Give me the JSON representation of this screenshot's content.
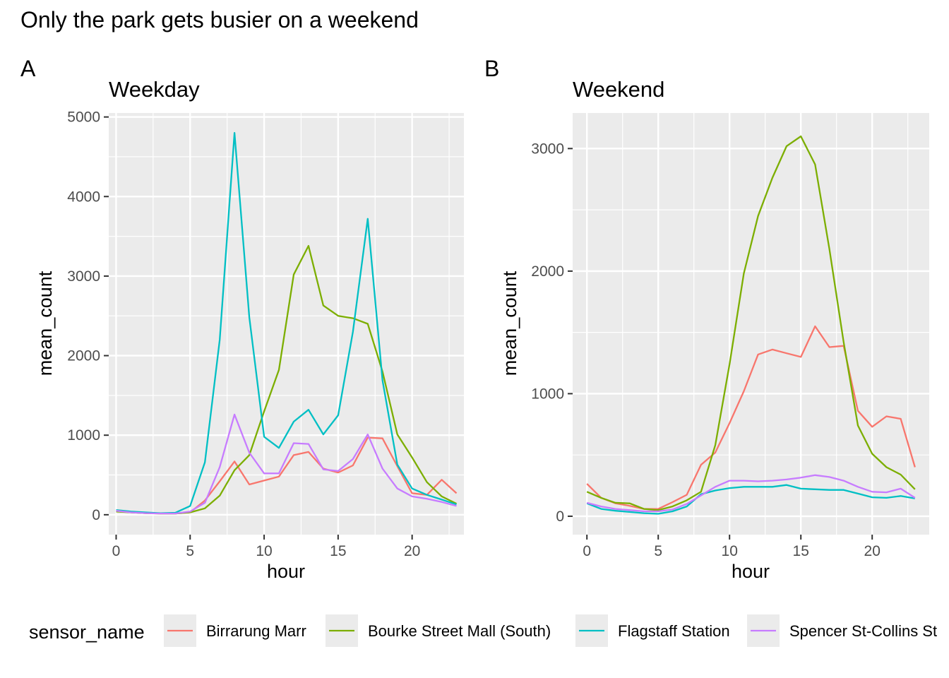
{
  "title": "Only the park gets busier on a weekend",
  "legend": {
    "title": "sensor_name"
  },
  "colors": {
    "Birrarung Marr": "#F8766D",
    "Bourke Street Mall (South)": "#7CAE00",
    "Flagstaff Station": "#00BFC4",
    "Spencer St-Collins St": "#C77CFF"
  },
  "chart_data": [
    {
      "tag": "A",
      "title": "Weekday",
      "type": "line",
      "xlabel": "hour",
      "ylabel": "mean_count",
      "xlim": [
        -0.5,
        23.5
      ],
      "ylim": [
        -250,
        5050
      ],
      "xticks": [
        0,
        5,
        10,
        15,
        20
      ],
      "yticks": [
        0,
        1000,
        2000,
        3000,
        4000,
        5000
      ],
      "grid": true,
      "x": [
        0,
        1,
        2,
        3,
        4,
        5,
        6,
        7,
        8,
        9,
        10,
        11,
        12,
        13,
        14,
        15,
        16,
        17,
        18,
        19,
        20,
        21,
        22,
        23
      ],
      "series": [
        {
          "name": "Birrarung Marr",
          "values": [
            50,
            30,
            20,
            15,
            15,
            30,
            180,
            420,
            670,
            380,
            430,
            480,
            750,
            790,
            580,
            530,
            620,
            970,
            960,
            610,
            270,
            250,
            440,
            270
          ]
        },
        {
          "name": "Bourke Street Mall (South)",
          "values": [
            40,
            30,
            20,
            15,
            15,
            30,
            80,
            240,
            560,
            750,
            1300,
            1820,
            3020,
            3380,
            2630,
            2500,
            2470,
            2400,
            1800,
            1010,
            720,
            410,
            230,
            140
          ]
        },
        {
          "name": "Flagstaff Station",
          "values": [
            60,
            40,
            30,
            20,
            25,
            110,
            660,
            2200,
            4800,
            2480,
            980,
            840,
            1170,
            1320,
            1010,
            1250,
            2300,
            3720,
            1690,
            630,
            330,
            250,
            190,
            130
          ]
        },
        {
          "name": "Spencer St-Collins St",
          "values": [
            50,
            30,
            20,
            15,
            15,
            40,
            150,
            600,
            1260,
            780,
            520,
            520,
            900,
            890,
            570,
            550,
            700,
            1010,
            580,
            330,
            230,
            200,
            160,
            110
          ]
        }
      ]
    },
    {
      "tag": "B",
      "title": "Weekend",
      "type": "line",
      "xlabel": "hour",
      "ylabel": "mean_count",
      "xlim": [
        -1,
        24
      ],
      "ylim": [
        -150,
        3290
      ],
      "xticks": [
        0,
        5,
        10,
        15,
        20
      ],
      "yticks": [
        0,
        1000,
        2000,
        3000
      ],
      "grid": true,
      "x": [
        0,
        1,
        2,
        3,
        4,
        5,
        6,
        7,
        8,
        9,
        10,
        11,
        12,
        13,
        14,
        15,
        16,
        17,
        18,
        19,
        20,
        21,
        22,
        23
      ],
      "series": [
        {
          "name": "Birrarung Marr",
          "values": [
            265,
            150,
            105,
            85,
            60,
            60,
            115,
            175,
            420,
            520,
            760,
            1020,
            1320,
            1360,
            1330,
            1300,
            1550,
            1380,
            1390,
            860,
            730,
            815,
            795,
            400
          ]
        },
        {
          "name": "Bourke Street Mall (South)",
          "values": [
            200,
            150,
            110,
            105,
            60,
            50,
            80,
            130,
            200,
            580,
            1240,
            1980,
            2450,
            2760,
            3020,
            3100,
            2870,
            2180,
            1420,
            740,
            510,
            400,
            340,
            220
          ]
        },
        {
          "name": "Flagstaff Station",
          "values": [
            105,
            60,
            45,
            35,
            25,
            20,
            40,
            80,
            180,
            210,
            230,
            240,
            240,
            240,
            255,
            225,
            220,
            215,
            215,
            185,
            155,
            150,
            165,
            145
          ]
        },
        {
          "name": "Spencer St-Collins St",
          "values": [
            110,
            80,
            60,
            50,
            40,
            40,
            55,
            100,
            170,
            240,
            290,
            290,
            285,
            290,
            300,
            315,
            335,
            320,
            290,
            240,
            200,
            195,
            225,
            150
          ]
        }
      ]
    }
  ]
}
